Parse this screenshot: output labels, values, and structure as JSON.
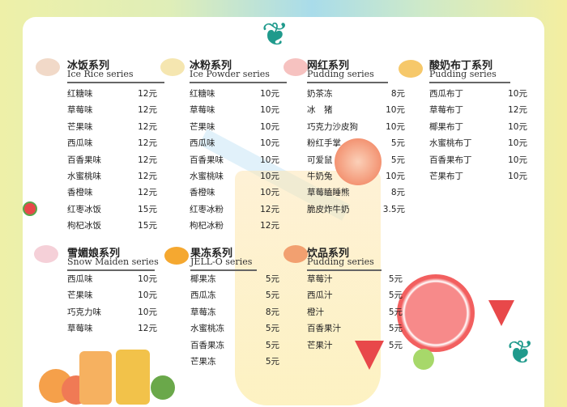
{
  "menu": {
    "sections": [
      {
        "title_cn": "冰饭系列",
        "title_en": "Ice Rice series",
        "icon": "ice-rice-bowl-icon",
        "items": [
          {
            "name": "红糖味",
            "price": "12元"
          },
          {
            "name": "草莓味",
            "price": "12元"
          },
          {
            "name": "芒果味",
            "price": "12元"
          },
          {
            "name": "西瓜味",
            "price": "12元"
          },
          {
            "name": "百香果味",
            "price": "12元"
          },
          {
            "name": "水蜜桃味",
            "price": "12元"
          },
          {
            "name": "香橙味",
            "price": "12元"
          },
          {
            "name": "红枣冰饭",
            "price": "15元"
          },
          {
            "name": "枸杞冰饭",
            "price": "15元"
          }
        ]
      },
      {
        "title_cn": "冰粉系列",
        "title_en": "Ice Powder series",
        "icon": "ice-powder-bowl-icon",
        "items": [
          {
            "name": "红糖味",
            "price": "10元"
          },
          {
            "name": "草莓味",
            "price": "10元"
          },
          {
            "name": "芒果味",
            "price": "10元"
          },
          {
            "name": "西瓜味",
            "price": "10元"
          },
          {
            "name": "百香果味",
            "price": "10元"
          },
          {
            "name": "水蜜桃味",
            "price": "10元"
          },
          {
            "name": "香橙味",
            "price": "10元"
          },
          {
            "name": "红枣冰粉",
            "price": "12元"
          },
          {
            "name": "枸杞冰粉",
            "price": "12元"
          }
        ]
      },
      {
        "title_cn": "网红系列",
        "title_en": "Pudding series",
        "icon": "pink-drink-icon",
        "items": [
          {
            "name": "奶茶冻",
            "price": "8元"
          },
          {
            "name": "冰　猪",
            "price": "10元"
          },
          {
            "name": "巧克力沙皮狗",
            "price": "10元"
          },
          {
            "name": "粉红手掌",
            "price": "5元"
          },
          {
            "name": "可爱鼠",
            "price": "5元"
          },
          {
            "name": "牛奶兔",
            "price": "10元"
          },
          {
            "name": "草莓瞌睡熊",
            "price": "8元"
          },
          {
            "name": "脆皮炸牛奶",
            "price": "3.5元"
          }
        ]
      },
      {
        "title_cn": "酸奶布丁系列",
        "title_en": "Pudding series",
        "icon": "pudding-icon",
        "items": [
          {
            "name": "西瓜布丁",
            "price": "10元"
          },
          {
            "name": "草莓布丁",
            "price": "12元"
          },
          {
            "name": "椰果布丁",
            "price": "10元"
          },
          {
            "name": "水蜜桃布丁",
            "price": "10元"
          },
          {
            "name": "百香果布丁",
            "price": "10元"
          },
          {
            "name": "芒果布丁",
            "price": "10元"
          }
        ]
      },
      {
        "title_cn": "雪媚娘系列",
        "title_en": "Snow Maiden series",
        "icon": "snow-maiden-box-icon",
        "items": [
          {
            "name": "西瓜味",
            "price": "10元"
          },
          {
            "name": "芒果味",
            "price": "10元"
          },
          {
            "name": "巧克力味",
            "price": "10元"
          },
          {
            "name": "草莓味",
            "price": "12元"
          }
        ]
      },
      {
        "title_cn": "果冻系列",
        "title_en": "JELL-O series",
        "icon": "jelly-icon",
        "items": [
          {
            "name": "椰果冻",
            "price": "5元"
          },
          {
            "name": "西瓜冻",
            "price": "5元"
          },
          {
            "name": "草莓冻",
            "price": "8元"
          },
          {
            "name": "水蜜桃冻",
            "price": "5元"
          },
          {
            "name": "百香果冻",
            "price": "5元"
          },
          {
            "name": "芒果冻",
            "price": "5元"
          }
        ]
      },
      {
        "title_cn": "饮品系列",
        "title_en": "Pudding series",
        "icon": "juice-glass-icon",
        "items": [
          {
            "name": "草莓汁",
            "price": "5元"
          },
          {
            "name": "西瓜汁",
            "price": "5元"
          },
          {
            "name": "橙汁",
            "price": "5元"
          },
          {
            "name": "百香果汁",
            "price": "5元"
          },
          {
            "name": "芒果汁",
            "price": "5元"
          }
        ]
      }
    ]
  },
  "colors": {
    "leaf": "#1f9a8c",
    "watermelon": "#e8484a",
    "orange": "#f5a04a"
  }
}
